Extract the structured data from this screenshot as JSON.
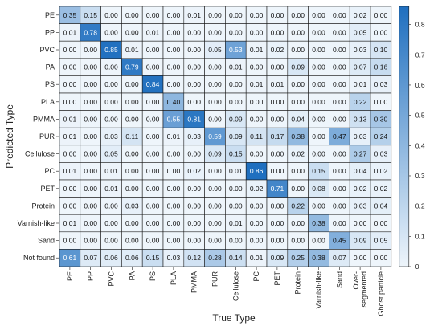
{
  "chart_data": {
    "type": "heatmap",
    "title": "",
    "xlabel": "True Type",
    "ylabel": "Predicted Type",
    "x_categories": [
      "PE",
      "PP",
      "PVC",
      "PA",
      "PS",
      "PLA",
      "PMMA",
      "PUR",
      "Cellulose",
      "PC",
      "PET",
      "Protein",
      "Varnish-like",
      "Sand",
      "Over-segmented",
      "Ghost particle"
    ],
    "x_tick_lines": [
      [
        "PE"
      ],
      [
        "PP"
      ],
      [
        "PVC"
      ],
      [
        "PA"
      ],
      [
        "PS"
      ],
      [
        "PLA"
      ],
      [
        "PMMA"
      ],
      [
        "PUR"
      ],
      [
        "Cellulose"
      ],
      [
        "PC"
      ],
      [
        "PET"
      ],
      [
        "Protein"
      ],
      [
        "Varnish-like"
      ],
      [
        "Sand"
      ],
      [
        "Over-",
        "segmented"
      ],
      [
        "Ghost particle"
      ]
    ],
    "y_categories": [
      "PE",
      "PP",
      "PVC",
      "PA",
      "PS",
      "PLA",
      "PMMA",
      "PUR",
      "Cellulose",
      "PC",
      "PET",
      "Protein",
      "Varnish-like",
      "Sand",
      "Not found"
    ],
    "values": [
      [
        0.35,
        0.15,
        0.0,
        0.0,
        0.0,
        0.0,
        0.01,
        0.0,
        0.0,
        0.0,
        0.0,
        0.0,
        0.0,
        0.0,
        0.02,
        0.0
      ],
      [
        0.01,
        0.78,
        0.0,
        0.0,
        0.01,
        0.0,
        0.0,
        0.0,
        0.0,
        0.0,
        0.0,
        0.0,
        0.0,
        0.0,
        0.05,
        0.0
      ],
      [
        0.0,
        0.0,
        0.85,
        0.01,
        0.0,
        0.0,
        0.0,
        0.05,
        0.53,
        0.01,
        0.02,
        0.0,
        0.0,
        0.0,
        0.03,
        0.1
      ],
      [
        0.0,
        0.0,
        0.0,
        0.79,
        0.0,
        0.0,
        0.0,
        0.0,
        0.01,
        0.0,
        0.0,
        0.09,
        0.0,
        0.0,
        0.07,
        0.16
      ],
      [
        0.0,
        0.0,
        0.0,
        0.0,
        0.84,
        0.0,
        0.0,
        0.0,
        0.0,
        0.01,
        0.01,
        0.0,
        0.0,
        0.0,
        0.01,
        0.03
      ],
      [
        0.0,
        0.0,
        0.0,
        0.0,
        0.0,
        0.4,
        0.0,
        0.0,
        0.0,
        0.0,
        0.0,
        0.0,
        0.0,
        0.0,
        0.22,
        0.0
      ],
      [
        0.01,
        0.0,
        0.0,
        0.0,
        0.0,
        0.55,
        0.81,
        0.0,
        0.09,
        0.0,
        0.0,
        0.04,
        0.0,
        0.0,
        0.13,
        0.3
      ],
      [
        0.01,
        0.0,
        0.03,
        0.11,
        0.0,
        0.01,
        0.03,
        0.59,
        0.09,
        0.11,
        0.17,
        0.38,
        0.0,
        0.47,
        0.03,
        0.24
      ],
      [
        0.0,
        0.0,
        0.05,
        0.0,
        0.0,
        0.0,
        0.0,
        0.09,
        0.15,
        0.0,
        0.0,
        0.02,
        0.0,
        0.0,
        0.27,
        0.03
      ],
      [
        0.01,
        0.0,
        0.01,
        0.0,
        0.0,
        0.0,
        0.02,
        0.0,
        0.01,
        0.86,
        0.0,
        0.0,
        0.15,
        0.0,
        0.04,
        0.02
      ],
      [
        0.0,
        0.0,
        0.01,
        0.0,
        0.0,
        0.0,
        0.0,
        0.0,
        0.0,
        0.02,
        0.71,
        0.0,
        0.08,
        0.0,
        0.02,
        0.02
      ],
      [
        0.0,
        0.0,
        0.0,
        0.03,
        0.0,
        0.0,
        0.0,
        0.0,
        0.0,
        0.0,
        0.0,
        0.22,
        0.0,
        0.0,
        0.03,
        0.04
      ],
      [
        0.01,
        0.0,
        0.0,
        0.0,
        0.0,
        0.0,
        0.0,
        0.0,
        0.01,
        0.0,
        0.0,
        0.0,
        0.38,
        0.0,
        0.0,
        0.0
      ],
      [
        0.0,
        0.0,
        0.0,
        0.0,
        0.0,
        0.0,
        0.0,
        0.0,
        0.0,
        0.0,
        0.0,
        0.0,
        0.0,
        0.45,
        0.09,
        0.05
      ],
      [
        0.61,
        0.07,
        0.06,
        0.06,
        0.15,
        0.03,
        0.12,
        0.28,
        0.14,
        0.01,
        0.09,
        0.25,
        0.38,
        0.07,
        0.0,
        0.0
      ]
    ],
    "colorbar": {
      "min": 0,
      "max": 0.86,
      "ticks": [
        0,
        0.1,
        0.2,
        0.3,
        0.4,
        0.5,
        0.6,
        0.7,
        0.8
      ],
      "tick_labels": [
        "0",
        "0.1",
        "0.2",
        "0.3",
        "0.4",
        "0.5",
        "0.6",
        "0.7",
        "0.8"
      ],
      "color_low": "#eef5fb",
      "color_high": "#1f6fbf"
    },
    "grid": true,
    "legend": "right colorbar"
  }
}
